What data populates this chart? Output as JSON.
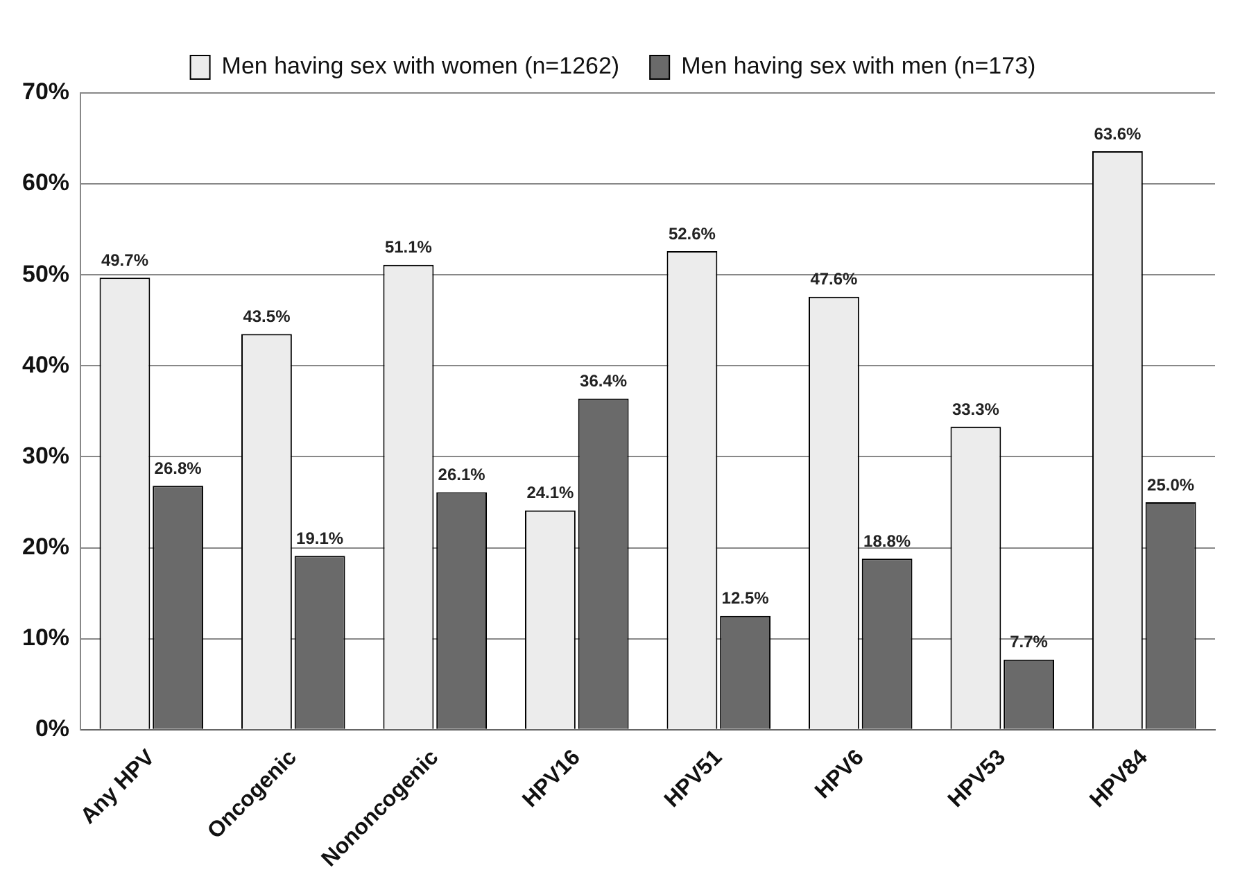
{
  "chart_data": {
    "type": "bar",
    "categories": [
      "Any HPV",
      "Oncogenic",
      "Nononcogenic",
      "HPV16",
      "HPV51",
      "HPV6",
      "HPV53",
      "HPV84"
    ],
    "series": [
      {
        "name": "Men having sex with women (n=1262)",
        "color": "#ececec",
        "values": [
          49.7,
          43.5,
          51.1,
          24.1,
          52.6,
          47.6,
          33.3,
          63.6
        ],
        "value_labels": [
          "49.7%",
          "43.5%",
          "51.1%",
          "24.1%",
          "52.6%",
          "47.6%",
          "33.3%",
          "63.6%"
        ]
      },
      {
        "name": "Men having sex with men (n=173)",
        "color": "#6a6a6a",
        "values": [
          26.8,
          19.1,
          26.1,
          36.4,
          12.5,
          18.8,
          7.7,
          25.0
        ],
        "value_labels": [
          "26.8%",
          "19.1%",
          "26.1%",
          "36.4%",
          "12.5%",
          "18.8%",
          "7.7%",
          "25.0%"
        ]
      }
    ],
    "ylim": [
      0,
      70
    ],
    "yticks": [
      {
        "value": 0,
        "label": "0%"
      },
      {
        "value": 10,
        "label": "10%"
      },
      {
        "value": 20,
        "label": "20%"
      },
      {
        "value": 30,
        "label": "30%"
      },
      {
        "value": 40,
        "label": "40%"
      },
      {
        "value": 50,
        "label": "50%"
      },
      {
        "value": 60,
        "label": "60%"
      },
      {
        "value": 70,
        "label": "70%"
      }
    ],
    "grid": "y",
    "legend": "top"
  }
}
